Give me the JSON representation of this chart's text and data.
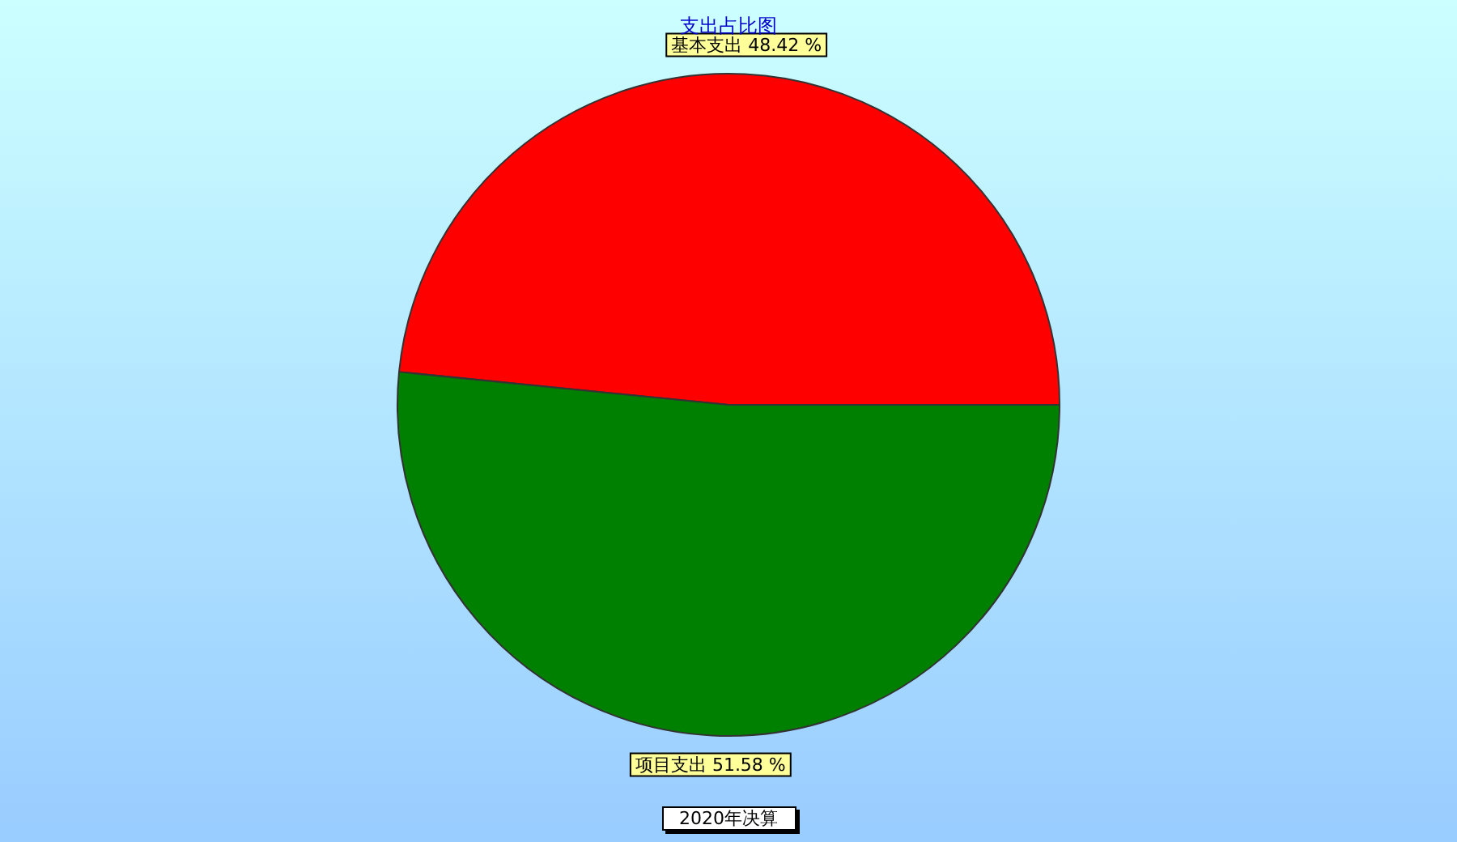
{
  "chart_data": {
    "type": "pie",
    "title": "支出占比图",
    "categories": [
      "基本支出",
      "项目支出"
    ],
    "values": [
      48.42,
      51.58
    ],
    "value_labels": [
      "48.42 %",
      "51.58 %"
    ],
    "colors": [
      "#ff0000",
      "#008000"
    ],
    "legend": false,
    "annotations": [
      "2020年决算"
    ]
  }
}
